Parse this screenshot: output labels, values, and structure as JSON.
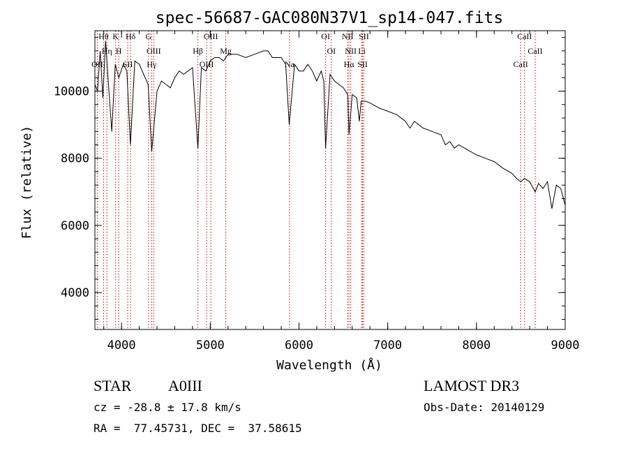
{
  "chart_data": {
    "type": "line",
    "title": "spec-56687-GAC080N37V1_sp14-047.fits",
    "xlabel": "Wavelength (Å)",
    "ylabel": "Flux (relative)",
    "xlim": [
      3700,
      9000
    ],
    "ylim": [
      2900,
      11800
    ],
    "x_ticks": [
      4000,
      5000,
      6000,
      7000,
      8000,
      9000
    ],
    "y_ticks": [
      4000,
      6000,
      8000,
      10000
    ],
    "x_minor_step": 200,
    "y_minor_step": 400,
    "series": [
      {
        "name": "flux",
        "x": [
          3700,
          3730,
          3760,
          3790,
          3820,
          3850,
          3890,
          3930,
          3970,
          4020,
          4060,
          4100,
          4150,
          4200,
          4250,
          4300,
          4340,
          4400,
          4450,
          4500,
          4550,
          4600,
          4650,
          4700,
          4750,
          4800,
          4861,
          4900,
          4950,
          5000,
          5050,
          5100,
          5150,
          5200,
          5250,
          5300,
          5400,
          5500,
          5600,
          5650,
          5700,
          5750,
          5800,
          5850,
          5890,
          5950,
          6000,
          6050,
          6100,
          6150,
          6200,
          6250,
          6280,
          6300,
          6350,
          6400,
          6450,
          6500,
          6550,
          6563,
          6600,
          6650,
          6680,
          6700,
          6750,
          6800,
          6900,
          7000,
          7100,
          7200,
          7250,
          7300,
          7400,
          7500,
          7600,
          7650,
          7700,
          7750,
          7800,
          7900,
          8000,
          8100,
          8200,
          8300,
          8400,
          8450,
          8500,
          8542,
          8600,
          8662,
          8700,
          8750,
          8800,
          8850,
          8900,
          8950,
          9000
        ],
        "y": [
          10200,
          10000,
          11200,
          9800,
          11500,
          10300,
          8800,
          10800,
          10400,
          10800,
          10600,
          8400,
          10900,
          10800,
          10500,
          10200,
          8200,
          10000,
          10300,
          10200,
          10100,
          10400,
          10600,
          10500,
          10600,
          10700,
          8300,
          10700,
          10600,
          10900,
          11000,
          11000,
          10900,
          11100,
          11100,
          11100,
          11000,
          11100,
          11200,
          11200,
          11000,
          11000,
          11000,
          10800,
          9000,
          10800,
          10600,
          10600,
          10800,
          10600,
          10300,
          10600,
          10300,
          8300,
          10500,
          10300,
          10200,
          10100,
          9900,
          8700,
          9900,
          9800,
          9100,
          9700,
          9700,
          9650,
          9500,
          9400,
          9300,
          9100,
          8900,
          9100,
          8900,
          8800,
          8700,
          8400,
          8500,
          8300,
          8400,
          8250,
          8100,
          8000,
          7900,
          7700,
          7550,
          7400,
          7300,
          7400,
          7300,
          7000,
          7250,
          7100,
          7300,
          6500,
          7200,
          7100,
          6600
        ]
      }
    ],
    "lines": [
      {
        "label": "Hθ",
        "x": 3798
      },
      {
        "label": "Hη",
        "x": 3835
      },
      {
        "label": "OII",
        "x": 3727
      },
      {
        "label": "K",
        "x": 3934
      },
      {
        "label": "H",
        "x": 3969
      },
      {
        "label": "SII",
        "x": 4070
      },
      {
        "label": "Hδ",
        "x": 4102
      },
      {
        "label": "OIII",
        "x": 4363
      },
      {
        "label": "Hγ",
        "x": 4340
      },
      {
        "label": "G",
        "x": 4304
      },
      {
        "label": "Hβ",
        "x": 4861
      },
      {
        "label": "OIII",
        "x": 4959
      },
      {
        "label": "OIII",
        "x": 5007
      },
      {
        "label": "Mg",
        "x": 5175
      },
      {
        "label": "Na",
        "x": 5893
      },
      {
        "label": "OI",
        "x": 6300
      },
      {
        "label": "OI",
        "x": 6364
      },
      {
        "label": "Hα",
        "x": 6563
      },
      {
        "label": "NII",
        "x": 6548
      },
      {
        "label": "NII",
        "x": 6583
      },
      {
        "label": "SII",
        "x": 6716
      },
      {
        "label": "SII",
        "x": 6731
      },
      {
        "label": "Li",
        "x": 6708
      },
      {
        "label": "CaII",
        "x": 8498
      },
      {
        "label": "CaII",
        "x": 8542
      },
      {
        "label": "CaII",
        "x": 8662
      }
    ],
    "line_color": "#cc0000"
  },
  "info": {
    "object_class": "STAR",
    "subclass": "A0III",
    "survey": "LAMOST DR3",
    "cz_text": "cz = -28.8 ± 17.8 km/s",
    "obs_date_text": "Obs-Date: 20140129",
    "radec_text": "RA =  77.45731, DEC =  37.58615"
  }
}
